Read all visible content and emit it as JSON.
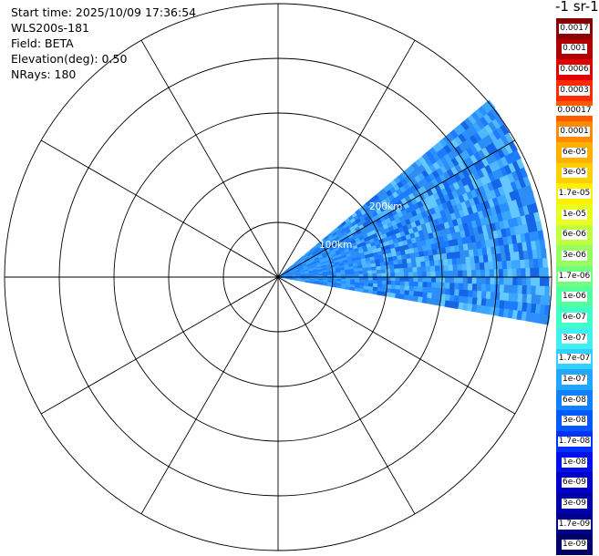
{
  "info": {
    "start_time": "Start time: 2025/10/09 17:36:54",
    "instrument": "WLS200s-181",
    "field": "Field: BETA",
    "elevation": "Elevation(deg): 0.50",
    "nrays": "NRays: 180"
  },
  "colorbar": {
    "title": "-1 sr-1",
    "labels": [
      "0.0017",
      "0.001",
      "0.0006",
      "0.0003",
      "0.00017",
      "0.0001",
      "6e-05",
      "3e-05",
      "1.7e-05",
      "1e-05",
      "6e-06",
      "3e-06",
      "1.7e-06",
      "1e-06",
      "6e-07",
      "3e-07",
      "1.7e-07",
      "1e-07",
      "6e-08",
      "3e-08",
      "1.7e-08",
      "1e-08",
      "6e-09",
      "3e-09",
      "1.7e-09",
      "1e-09"
    ],
    "colors": [
      "#8b0000",
      "#b00000",
      "#e00000",
      "#ff2a00",
      "#ff5a00",
      "#ff8a00",
      "#ffb000",
      "#ffd000",
      "#fff000",
      "#e8ff20",
      "#c0ff40",
      "#98ff60",
      "#70ff80",
      "#50ffa0",
      "#40ffc8",
      "#40f0f0",
      "#30d0ff",
      "#20a8ff",
      "#1080ff",
      "#0058ff",
      "#0030ff",
      "#0010e8",
      "#0000c8",
      "#0000a8",
      "#000088",
      "#000068"
    ]
  },
  "ring_labels": [
    "100km",
    "200km"
  ],
  "sector": {
    "azimuth_start_deg": 50,
    "azimuth_end_deg": 100
  }
}
